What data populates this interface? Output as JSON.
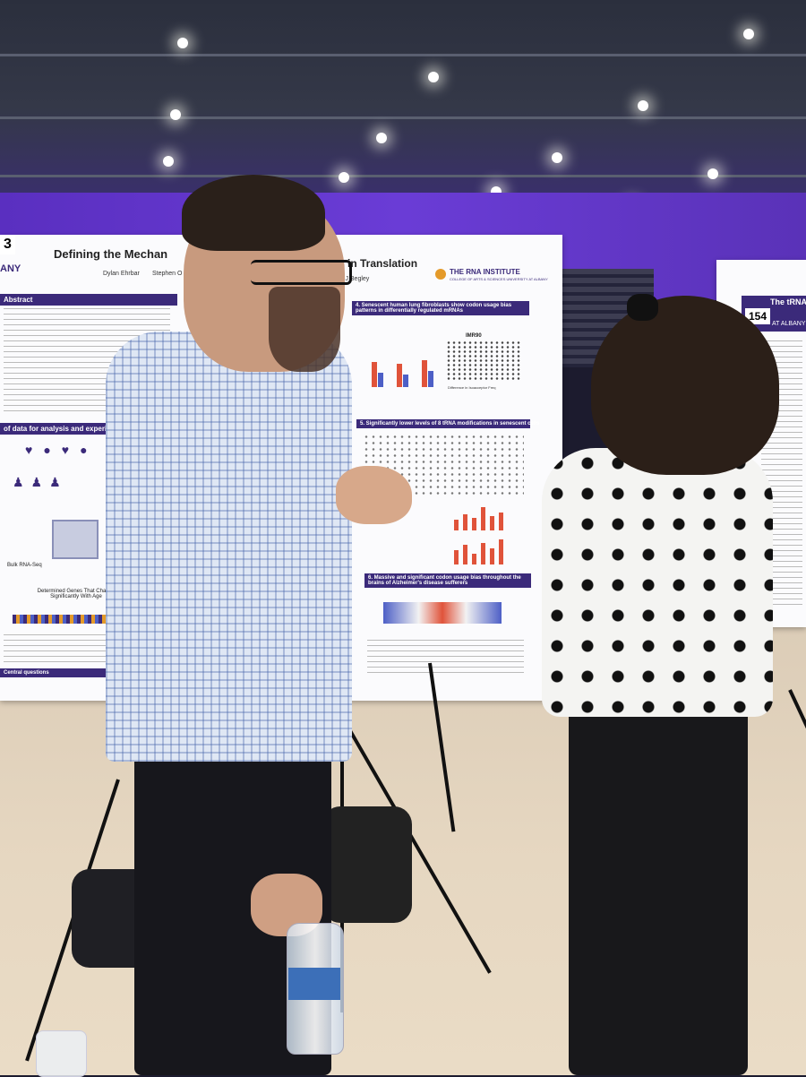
{
  "poster_left": {
    "number": "3",
    "title_fragment": "Defining the Mechan",
    "title_right_fragment": "s in Translation",
    "authors_fragment": "Dylan Ehrbar",
    "authors_fragment_2": "Stephen O",
    "authors_fragment_3": "s J Begley",
    "sections": {
      "abstract": "Abstract",
      "data": "of data for analysis and experimental design",
      "senescent": "4. Senescent human lung fibroblasts show codon usage bias patterns in differentially regulated mRNAs",
      "trna": "5. Significantly lower levels of 8 tRNA modifications in senescent cells",
      "alzheimers": "6. Massive and significant codon usage bias throughout the brains of Alzheimer's disease sufferers",
      "central_questions": "Central questions"
    },
    "labels": {
      "bulk_rna_seq": "Bulk RNA-Seq",
      "determined_genes": "Determined Genes That Change Significantly With Age",
      "institute": "THE RNA INSTITUTE",
      "institute_sub": "COLLEGE OF ARTS & SCIENCES UNIVERSITY AT ALBANY",
      "imr90": "IMR90",
      "axis_label": "Difference in Isoacceptor Freq",
      "albany": "ANY"
    }
  },
  "poster_right": {
    "number": "154",
    "title_fragment": "The tRNA wo",
    "university": "AT ALBANY"
  },
  "colors": {
    "poster_accent": "#3b2a7a",
    "bar_red": "#e0533a",
    "bar_blue": "#4d5fc6",
    "venue_purple": "#5a2fc0"
  }
}
